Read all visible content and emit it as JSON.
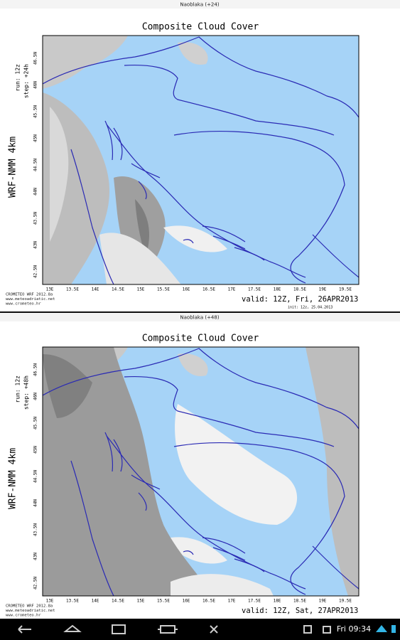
{
  "panels": [
    {
      "header": "Naoblaka (+24)",
      "title": "Composite Cloud Cover",
      "run": "run: 12z",
      "step": "step: +24h",
      "model": "WRF-NMM 4km",
      "lat_ticks": [
        "46.5N",
        "46N",
        "45.5N",
        "45N",
        "44.5N",
        "44N",
        "43.5N",
        "43N",
        "42.5N"
      ],
      "lon_ticks": [
        "13E",
        "13.5E",
        "14E",
        "14.5E",
        "15E",
        "15.5E",
        "16E",
        "16.5E",
        "17E",
        "17.5E",
        "18E",
        "18.5E",
        "19E",
        "19.5E"
      ],
      "credits": [
        "CROMETEO WRF 2012.8a",
        "www.meteoadriatic.net",
        "www.crometeo.hr"
      ],
      "valid": "valid: 12Z, Fri, 26APR2013",
      "init": "init: 12z, 25.04.2013"
    },
    {
      "header": "Naoblaka (+48)",
      "title": "Composite Cloud Cover",
      "run": "run: 12z",
      "step": "step: +48h",
      "model": "WRF-NMM 4km",
      "lat_ticks": [
        "46.5N",
        "46N",
        "45.5N",
        "45N",
        "44.5N",
        "44N",
        "43.5N",
        "43N",
        "42.5N"
      ],
      "lon_ticks": [
        "13E",
        "13.5E",
        "14E",
        "14.5E",
        "15E",
        "15.5E",
        "16E",
        "16.5E",
        "17E",
        "17.5E",
        "18E",
        "18.5E",
        "19E",
        "19.5E"
      ],
      "credits": [
        "CROMETEO WRF 2012.8a",
        "www.meteoadriatic.net",
        "www.crometeo.hr"
      ],
      "valid": "valid: 12Z, Sat, 27APR2013"
    }
  ],
  "status_bar": {
    "time": "Fri 09:34"
  }
}
